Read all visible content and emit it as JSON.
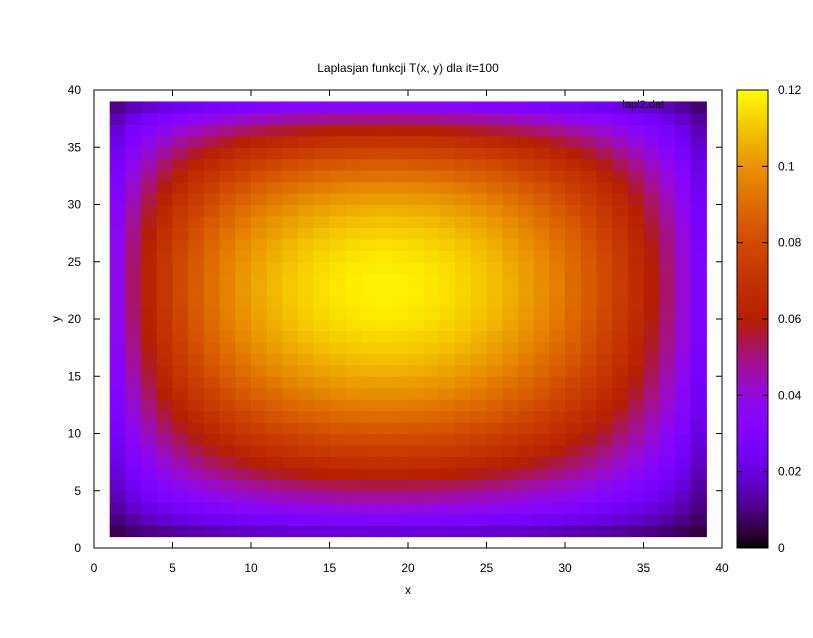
{
  "chart_data": {
    "type": "heatmap",
    "title": "Laplasjan funkcji T(x, y) dla it=100",
    "xlabel": "x",
    "ylabel": "y",
    "legend_label": "lapl2.dat",
    "xlim": [
      0,
      40
    ],
    "ylim": [
      0,
      40
    ],
    "x_ticks": [
      0,
      5,
      10,
      15,
      20,
      25,
      30,
      35,
      40
    ],
    "y_ticks": [
      0,
      5,
      10,
      15,
      20,
      25,
      30,
      35,
      40
    ],
    "grid": {
      "x_start": 1,
      "x_end": 39,
      "y_start": 1,
      "y_end": 39,
      "step": 1
    },
    "value_model": {
      "peak_x": 18.5,
      "peak_y": 22.8,
      "peak_value": 0.118,
      "boundary_value": 0
    },
    "colorbar": {
      "range": [
        0,
        0.12
      ],
      "ticks": [
        0,
        0.02,
        0.04,
        0.06,
        0.08,
        0.1,
        0.12
      ],
      "palette": "gnuplot (black-blue-purple-red-orange-yellow)"
    }
  }
}
